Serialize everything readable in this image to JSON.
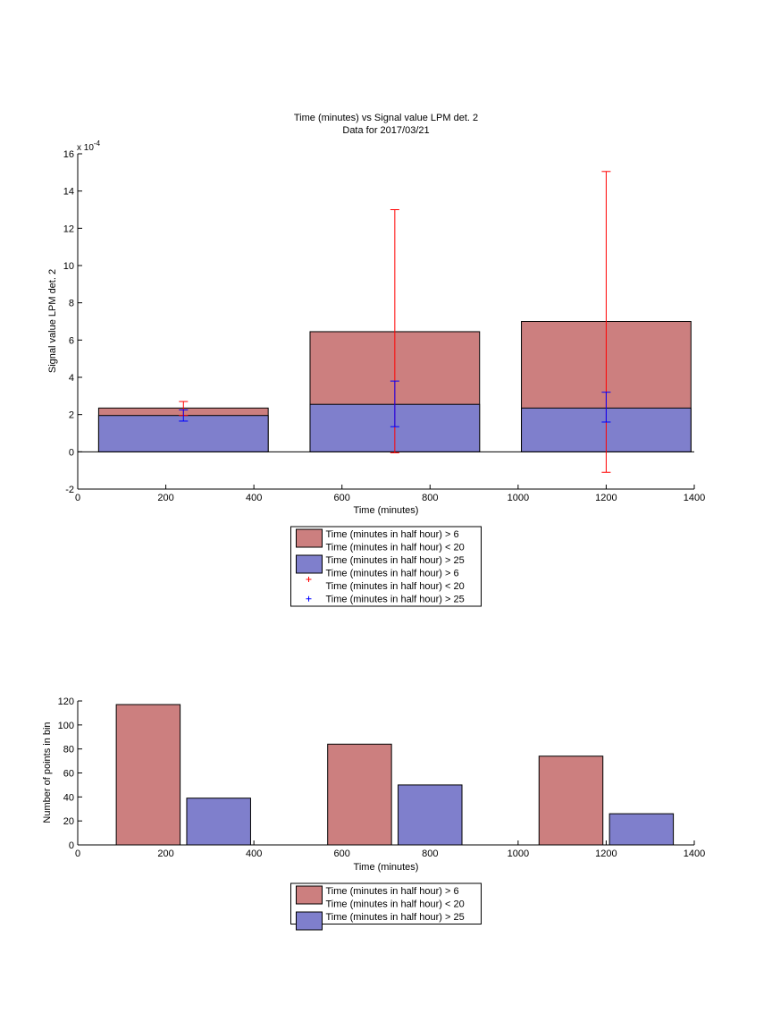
{
  "colors": {
    "series_a": "#cc7f7f",
    "series_b": "#7f7fcc",
    "err_a": "#ff0000",
    "err_b": "#0000ff"
  },
  "chart_data": [
    {
      "type": "bar",
      "title": "Time (minutes) vs Signal value LPM det. 2",
      "subtitle": "Data for 2017/03/21",
      "xlabel": "Time (minutes)",
      "ylabel": "Signal value LPM det. 2",
      "y_exponent_label": "x 10",
      "y_exponent_power": "-4",
      "xlim": [
        0,
        1400
      ],
      "ylim": [
        -2,
        16
      ],
      "x_ticks": [
        0,
        200,
        400,
        600,
        800,
        1000,
        1200,
        1400
      ],
      "y_ticks": [
        -2,
        0,
        2,
        4,
        6,
        8,
        10,
        12,
        14,
        16
      ],
      "grid": false,
      "bar_mode": "overlay",
      "bar_width": 385,
      "x": [
        240,
        720,
        1200
      ],
      "series": [
        {
          "name": "Time (minutes in half hour) > 6\nTime (minutes in half hour) < 20",
          "values": [
            2.35,
            6.45,
            7.0
          ],
          "err_low": [
            1.95,
            -0.05,
            -1.1
          ],
          "err_high": [
            2.7,
            13.0,
            15.05
          ]
        },
        {
          "name": "Time (minutes in half hour) > 25",
          "values": [
            1.95,
            2.55,
            2.35
          ],
          "err_low": [
            1.65,
            1.35,
            1.6
          ],
          "err_high": [
            2.25,
            3.8,
            3.2
          ]
        }
      ],
      "legend": {
        "placement": "below",
        "entries": [
          {
            "kind": "bar",
            "series": 0,
            "lines": [
              "Time (minutes in half hour) > 6",
              "Time (minutes in half hour) < 20"
            ]
          },
          {
            "kind": "bar",
            "series": 1,
            "lines": [
              "Time (minutes in half hour) > 25"
            ]
          },
          {
            "kind": "marker",
            "series": 0,
            "lines": [
              "Time (minutes in half hour) > 6",
              "Time (minutes in half hour) < 20"
            ]
          },
          {
            "kind": "marker",
            "series": 1,
            "lines": [
              "Time (minutes in half hour) > 25"
            ]
          }
        ]
      }
    },
    {
      "type": "bar",
      "title": "",
      "xlabel": "Time (minutes)",
      "ylabel": "Number of points in bin",
      "xlim": [
        0,
        1400
      ],
      "ylim": [
        0,
        120
      ],
      "x_ticks": [
        0,
        200,
        400,
        600,
        800,
        1000,
        1200,
        1400
      ],
      "y_ticks": [
        0,
        20,
        40,
        60,
        80,
        100,
        120
      ],
      "grid": false,
      "bar_mode": "grouped",
      "bar_width": 145,
      "series": [
        {
          "name": "Time (minutes in half hour) > 6\nTime (minutes in half hour) < 20",
          "x": [
            160,
            640,
            1120
          ],
          "values": [
            117,
            84,
            74
          ]
        },
        {
          "name": "Time (minutes in half hour) > 25",
          "x": [
            320,
            800,
            1280
          ],
          "values": [
            39,
            50,
            26
          ]
        }
      ],
      "legend": {
        "placement": "below",
        "entries": [
          {
            "kind": "bar",
            "series": 0,
            "lines": [
              "Time (minutes in half hour) > 6",
              "Time (minutes in half hour) < 20"
            ]
          },
          {
            "kind": "bar",
            "series": 1,
            "lines": [
              "Time (minutes in half hour) > 25"
            ]
          }
        ]
      }
    }
  ]
}
